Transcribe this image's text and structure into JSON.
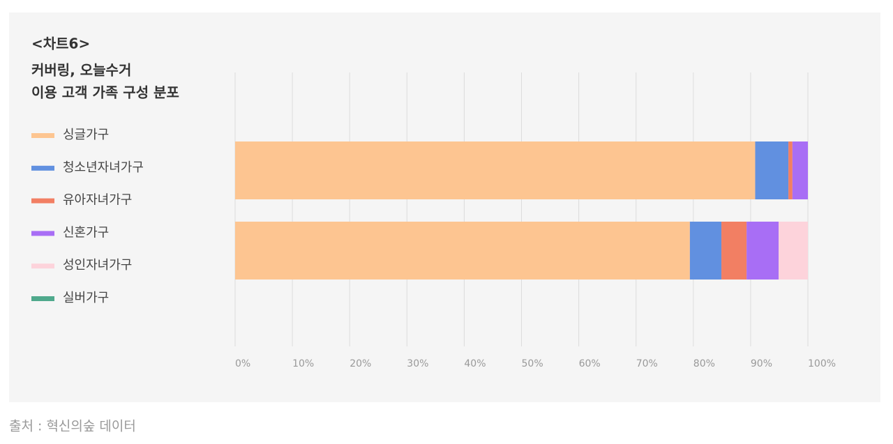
{
  "chart_data": {
    "type": "stacked-barh",
    "label": "<차트6>",
    "title": [
      "커버링, 오늘수거",
      "이용 고객 가족 구성 분포"
    ],
    "categories": [
      null,
      null
    ],
    "series": [
      {
        "name": "싱글가구",
        "color": "#fdc591",
        "values": [
          90.8,
          79.4
        ]
      },
      {
        "name": "청소년자녀가구",
        "color": "#6190e0",
        "values": [
          5.8,
          5.5
        ]
      },
      {
        "name": "유아자녀가구",
        "color": "#f27f63",
        "values": [
          0.7,
          4.4
        ]
      },
      {
        "name": "신혼가구",
        "color": "#a86ef5",
        "values": [
          2.7,
          5.6
        ]
      },
      {
        "name": "성인자녀가구",
        "color": "#fdd3db",
        "values": [
          0,
          5.1
        ]
      },
      {
        "name": "실버가구",
        "color": "#4fa98c",
        "values": [
          0,
          0
        ]
      }
    ],
    "xlim": [
      0,
      100
    ],
    "xticks": [
      {
        "value": 0,
        "label": "0%"
      },
      {
        "value": 10,
        "label": "10%"
      },
      {
        "value": 20,
        "label": "20%"
      },
      {
        "value": 30,
        "label": "30%"
      },
      {
        "value": 40,
        "label": "40%"
      },
      {
        "value": 50,
        "label": "50%"
      },
      {
        "value": 60,
        "label": "60%"
      },
      {
        "value": 70,
        "label": "70%"
      },
      {
        "value": 80,
        "label": "80%"
      },
      {
        "value": 90,
        "label": "90%"
      },
      {
        "value": 100,
        "label": "100%"
      }
    ],
    "grid": true,
    "legend": "left",
    "source": "출처 : 혁신의숲 데이터"
  }
}
